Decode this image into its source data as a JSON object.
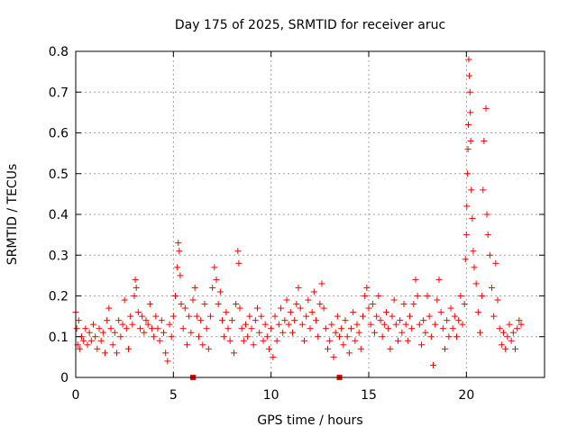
{
  "chart_data": {
    "type": "scatter",
    "title": "Day 175 of 2025, SRMTID for receiver aruc",
    "xlabel": "GPS time / hours",
    "ylabel": "SRMTID / TECUs",
    "xlim": [
      0,
      24
    ],
    "ylim": [
      0,
      0.8
    ],
    "grid": true,
    "colors": {
      "series": "#ff0000",
      "grid": "#a0a0a0",
      "axis": "#000000"
    },
    "x_ticks": [
      0,
      5,
      10,
      15,
      20
    ],
    "x_tick_labels": [
      "0",
      "5",
      "10",
      "15",
      "20"
    ],
    "y_ticks": [
      0,
      0.1,
      0.2,
      0.3,
      0.4,
      0.5,
      0.6,
      0.7,
      0.8
    ],
    "y_tick_labels": [
      "0",
      "0.1",
      "0.2",
      "0.3",
      "0.4",
      "0.5",
      "0.6",
      "0.7",
      "0.8"
    ],
    "series": [
      {
        "name": "SRMTID",
        "marker": "plus",
        "points": [
          [
            0.0,
            0.16
          ],
          [
            0.05,
            0.12
          ],
          [
            0.1,
            0.08
          ],
          [
            0.15,
            0.14
          ],
          [
            0.2,
            0.07
          ],
          [
            0.3,
            0.1
          ],
          [
            0.4,
            0.09
          ],
          [
            0.5,
            0.12
          ],
          [
            0.6,
            0.08
          ],
          [
            0.7,
            0.11
          ],
          [
            0.8,
            0.09
          ],
          [
            0.9,
            0.13
          ],
          [
            1.0,
            0.1
          ],
          [
            1.1,
            0.07
          ],
          [
            1.2,
            0.12
          ],
          [
            1.3,
            0.09
          ],
          [
            1.4,
            0.11
          ],
          [
            1.5,
            0.06
          ],
          [
            1.6,
            0.14
          ],
          [
            1.7,
            0.17
          ],
          [
            1.8,
            0.12
          ],
          [
            1.9,
            0.08
          ],
          [
            2.0,
            0.11
          ],
          [
            2.1,
            0.06
          ],
          [
            2.2,
            0.14
          ],
          [
            2.3,
            0.1
          ],
          [
            2.4,
            0.13
          ],
          [
            2.5,
            0.19
          ],
          [
            2.6,
            0.12
          ],
          [
            2.7,
            0.07
          ],
          [
            2.8,
            0.15
          ],
          [
            2.9,
            0.13
          ],
          [
            3.0,
            0.2
          ],
          [
            3.05,
            0.24
          ],
          [
            3.1,
            0.22
          ],
          [
            3.2,
            0.16
          ],
          [
            3.3,
            0.12
          ],
          [
            3.4,
            0.15
          ],
          [
            3.5,
            0.11
          ],
          [
            3.6,
            0.14
          ],
          [
            3.7,
            0.13
          ],
          [
            3.8,
            0.18
          ],
          [
            3.9,
            0.12
          ],
          [
            4.0,
            0.1
          ],
          [
            4.1,
            0.15
          ],
          [
            4.2,
            0.12
          ],
          [
            4.3,
            0.09
          ],
          [
            4.4,
            0.14
          ],
          [
            4.5,
            0.11
          ],
          [
            4.6,
            0.06
          ],
          [
            4.7,
            0.04
          ],
          [
            4.8,
            0.13
          ],
          [
            4.9,
            0.1
          ],
          [
            5.0,
            0.15
          ],
          [
            5.1,
            0.2
          ],
          [
            5.2,
            0.27
          ],
          [
            5.25,
            0.33
          ],
          [
            5.3,
            0.31
          ],
          [
            5.35,
            0.25
          ],
          [
            5.4,
            0.18
          ],
          [
            5.5,
            0.12
          ],
          [
            5.6,
            0.17
          ],
          [
            5.7,
            0.08
          ],
          [
            5.8,
            0.15
          ],
          [
            5.9,
            0.11
          ],
          [
            6.0,
            0.19
          ],
          [
            6.1,
            0.22
          ],
          [
            6.2,
            0.15
          ],
          [
            6.3,
            0.1
          ],
          [
            6.4,
            0.14
          ],
          [
            6.5,
            0.08
          ],
          [
            6.6,
            0.18
          ],
          [
            6.7,
            0.12
          ],
          [
            6.8,
            0.07
          ],
          [
            6.9,
            0.15
          ],
          [
            7.0,
            0.22
          ],
          [
            7.1,
            0.27
          ],
          [
            7.2,
            0.24
          ],
          [
            7.3,
            0.18
          ],
          [
            7.4,
            0.21
          ],
          [
            7.5,
            0.14
          ],
          [
            7.6,
            0.1
          ],
          [
            7.7,
            0.16
          ],
          [
            7.8,
            0.12
          ],
          [
            7.9,
            0.09
          ],
          [
            8.0,
            0.14
          ],
          [
            8.1,
            0.06
          ],
          [
            8.2,
            0.18
          ],
          [
            8.3,
            0.31
          ],
          [
            8.35,
            0.28
          ],
          [
            8.4,
            0.17
          ],
          [
            8.5,
            0.12
          ],
          [
            8.6,
            0.09
          ],
          [
            8.7,
            0.13
          ],
          [
            8.8,
            0.1
          ],
          [
            8.9,
            0.15
          ],
          [
            9.0,
            0.12
          ],
          [
            9.1,
            0.08
          ],
          [
            9.2,
            0.14
          ],
          [
            9.3,
            0.17
          ],
          [
            9.4,
            0.11
          ],
          [
            9.5,
            0.15
          ],
          [
            9.6,
            0.09
          ],
          [
            9.7,
            0.13
          ],
          [
            9.8,
            0.1
          ],
          [
            9.9,
            0.07
          ],
          [
            10.0,
            0.12
          ],
          [
            10.1,
            0.05
          ],
          [
            10.2,
            0.15
          ],
          [
            10.3,
            0.09
          ],
          [
            10.4,
            0.13
          ],
          [
            10.5,
            0.17
          ],
          [
            10.6,
            0.11
          ],
          [
            10.7,
            0.14
          ],
          [
            10.8,
            0.19
          ],
          [
            10.9,
            0.13
          ],
          [
            11.0,
            0.16
          ],
          [
            11.1,
            0.11
          ],
          [
            11.2,
            0.14
          ],
          [
            11.3,
            0.18
          ],
          [
            11.4,
            0.22
          ],
          [
            11.5,
            0.17
          ],
          [
            11.6,
            0.13
          ],
          [
            11.7,
            0.09
          ],
          [
            11.8,
            0.15
          ],
          [
            11.9,
            0.19
          ],
          [
            12.0,
            0.12
          ],
          [
            12.1,
            0.16
          ],
          [
            12.2,
            0.21
          ],
          [
            12.3,
            0.14
          ],
          [
            12.4,
            0.1
          ],
          [
            12.5,
            0.18
          ],
          [
            12.6,
            0.23
          ],
          [
            12.7,
            0.17
          ],
          [
            12.8,
            0.12
          ],
          [
            12.9,
            0.07
          ],
          [
            13.0,
            0.09
          ],
          [
            13.1,
            0.13
          ],
          [
            13.2,
            0.05
          ],
          [
            13.3,
            0.11
          ],
          [
            13.4,
            0.15
          ],
          [
            13.5,
            0.1
          ],
          [
            13.6,
            0.12
          ],
          [
            13.7,
            0.08
          ],
          [
            13.8,
            0.14
          ],
          [
            13.9,
            0.1
          ],
          [
            14.0,
            0.06
          ],
          [
            14.1,
            0.12
          ],
          [
            14.2,
            0.16
          ],
          [
            14.3,
            0.09
          ],
          [
            14.4,
            0.13
          ],
          [
            14.5,
            0.11
          ],
          [
            14.6,
            0.07
          ],
          [
            14.7,
            0.15
          ],
          [
            14.8,
            0.2
          ],
          [
            14.9,
            0.22
          ],
          [
            15.0,
            0.17
          ],
          [
            15.1,
            0.13
          ],
          [
            15.2,
            0.18
          ],
          [
            15.3,
            0.11
          ],
          [
            15.4,
            0.15
          ],
          [
            15.5,
            0.2
          ],
          [
            15.6,
            0.14
          ],
          [
            15.7,
            0.1
          ],
          [
            15.8,
            0.13
          ],
          [
            15.9,
            0.16
          ],
          [
            16.0,
            0.12
          ],
          [
            16.1,
            0.07
          ],
          [
            16.2,
            0.15
          ],
          [
            16.3,
            0.19
          ],
          [
            16.4,
            0.13
          ],
          [
            16.5,
            0.09
          ],
          [
            16.6,
            0.14
          ],
          [
            16.7,
            0.11
          ],
          [
            16.8,
            0.18
          ],
          [
            16.9,
            0.13
          ],
          [
            17.0,
            0.09
          ],
          [
            17.1,
            0.15
          ],
          [
            17.2,
            0.12
          ],
          [
            17.3,
            0.18
          ],
          [
            17.4,
            0.24
          ],
          [
            17.5,
            0.2
          ],
          [
            17.6,
            0.13
          ],
          [
            17.7,
            0.08
          ],
          [
            17.8,
            0.14
          ],
          [
            17.9,
            0.11
          ],
          [
            18.0,
            0.2
          ],
          [
            18.1,
            0.15
          ],
          [
            18.2,
            0.1
          ],
          [
            18.3,
            0.03
          ],
          [
            18.4,
            0.13
          ],
          [
            18.5,
            0.19
          ],
          [
            18.6,
            0.24
          ],
          [
            18.7,
            0.16
          ],
          [
            18.8,
            0.12
          ],
          [
            18.9,
            0.07
          ],
          [
            19.0,
            0.14
          ],
          [
            19.1,
            0.1
          ],
          [
            19.2,
            0.17
          ],
          [
            19.3,
            0.12
          ],
          [
            19.4,
            0.15
          ],
          [
            19.5,
            0.1
          ],
          [
            19.6,
            0.14
          ],
          [
            19.7,
            0.2
          ],
          [
            19.8,
            0.13
          ],
          [
            19.9,
            0.18
          ],
          [
            19.95,
            0.29
          ],
          [
            20.0,
            0.35
          ],
          [
            20.02,
            0.42
          ],
          [
            20.05,
            0.5
          ],
          [
            20.08,
            0.56
          ],
          [
            20.1,
            0.62
          ],
          [
            20.12,
            0.78
          ],
          [
            20.15,
            0.74
          ],
          [
            20.18,
            0.7
          ],
          [
            20.2,
            0.65
          ],
          [
            20.22,
            0.58
          ],
          [
            20.25,
            0.46
          ],
          [
            20.3,
            0.39
          ],
          [
            20.35,
            0.31
          ],
          [
            20.4,
            0.27
          ],
          [
            20.5,
            0.23
          ],
          [
            20.6,
            0.16
          ],
          [
            20.7,
            0.11
          ],
          [
            20.8,
            0.2
          ],
          [
            20.85,
            0.46
          ],
          [
            20.9,
            0.58
          ],
          [
            21.0,
            0.66
          ],
          [
            21.05,
            0.4
          ],
          [
            21.1,
            0.35
          ],
          [
            21.2,
            0.3
          ],
          [
            21.3,
            0.22
          ],
          [
            21.4,
            0.15
          ],
          [
            21.5,
            0.28
          ],
          [
            21.6,
            0.19
          ],
          [
            21.7,
            0.12
          ],
          [
            21.8,
            0.08
          ],
          [
            21.9,
            0.11
          ],
          [
            22.0,
            0.07
          ],
          [
            22.1,
            0.1
          ],
          [
            22.2,
            0.13
          ],
          [
            22.3,
            0.09
          ],
          [
            22.4,
            0.11
          ],
          [
            22.5,
            0.07
          ],
          [
            22.6,
            0.12
          ],
          [
            22.7,
            0.14
          ],
          [
            22.8,
            0.13
          ]
        ]
      }
    ],
    "baseline_markers": [
      6.0,
      13.5
    ]
  }
}
